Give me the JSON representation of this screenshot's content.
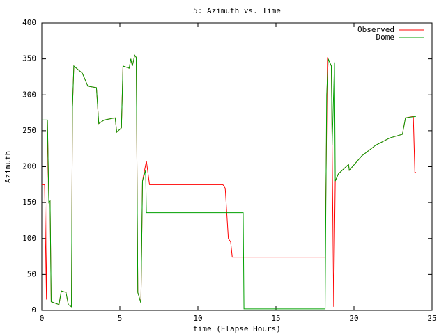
{
  "chart_data": {
    "type": "line",
    "title": "5: Azimuth vs. Time",
    "x_label": "time (Elapse Hours)",
    "y_label": "Azimuth",
    "xlim": [
      0,
      25
    ],
    "xticks": [
      0,
      5,
      10,
      15,
      20,
      25
    ],
    "ylim": [
      0,
      400
    ],
    "yticks": [
      0,
      50,
      100,
      150,
      200,
      250,
      300,
      350,
      400
    ],
    "grid": false,
    "legend": "top-right",
    "series": [
      {
        "name": "Observed",
        "color": "#ff0000",
        "x": [
          0,
          0.18,
          0.3,
          0.36,
          0.45,
          0.53,
          0.6,
          1.1,
          1.25,
          1.55,
          1.7,
          1.9,
          1.96,
          2.05,
          2.6,
          2.95,
          3.5,
          3.65,
          4.0,
          4.7,
          4.8,
          5.1,
          5.2,
          5.6,
          5.7,
          5.8,
          5.95,
          6.05,
          6.15,
          6.35,
          6.45,
          6.7,
          6.9,
          11.6,
          11.75,
          11.95,
          12.1,
          12.2,
          18.15,
          18.3,
          18.55,
          18.7,
          18.8,
          19.0,
          19.65,
          19.7,
          20.5,
          21.4,
          22.3,
          23.1,
          23.3,
          23.8,
          23.9,
          23.97
        ],
        "values": [
          175,
          175,
          15,
          265,
          150,
          152,
          12,
          8,
          27,
          25,
          8,
          5,
          280,
          340,
          330,
          312,
          310,
          260,
          265,
          268,
          248,
          254,
          340,
          337,
          350,
          340,
          355,
          352,
          25,
          10,
          180,
          208,
          175,
          175,
          170,
          100,
          95,
          74,
          74,
          352,
          340,
          5,
          180,
          190,
          203,
          195,
          215,
          230,
          240,
          245,
          268,
          270,
          192,
          192
        ]
      },
      {
        "name": "Dome",
        "color": "#00a000",
        "x": [
          0,
          0.36,
          0.45,
          0.53,
          0.6,
          1.1,
          1.25,
          1.55,
          1.7,
          1.9,
          1.96,
          2.05,
          2.6,
          2.95,
          3.5,
          3.65,
          4.0,
          4.7,
          4.8,
          5.1,
          5.2,
          5.6,
          5.7,
          5.8,
          5.95,
          6.05,
          6.15,
          6.35,
          6.45,
          6.65,
          6.7,
          12.9,
          12.95,
          18.15,
          18.25,
          18.35,
          18.55,
          18.6,
          18.75,
          18.8,
          19.0,
          19.65,
          19.7,
          20.5,
          21.4,
          22.3,
          23.1,
          23.3,
          23.97
        ],
        "values": [
          265,
          265,
          150,
          152,
          12,
          8,
          27,
          25,
          8,
          5,
          280,
          340,
          330,
          312,
          310,
          260,
          265,
          268,
          248,
          254,
          340,
          337,
          350,
          340,
          355,
          352,
          25,
          10,
          180,
          195,
          136,
          136,
          2,
          2,
          300,
          350,
          340,
          230,
          345,
          180,
          190,
          203,
          195,
          215,
          230,
          240,
          245,
          268,
          270
        ]
      }
    ]
  }
}
